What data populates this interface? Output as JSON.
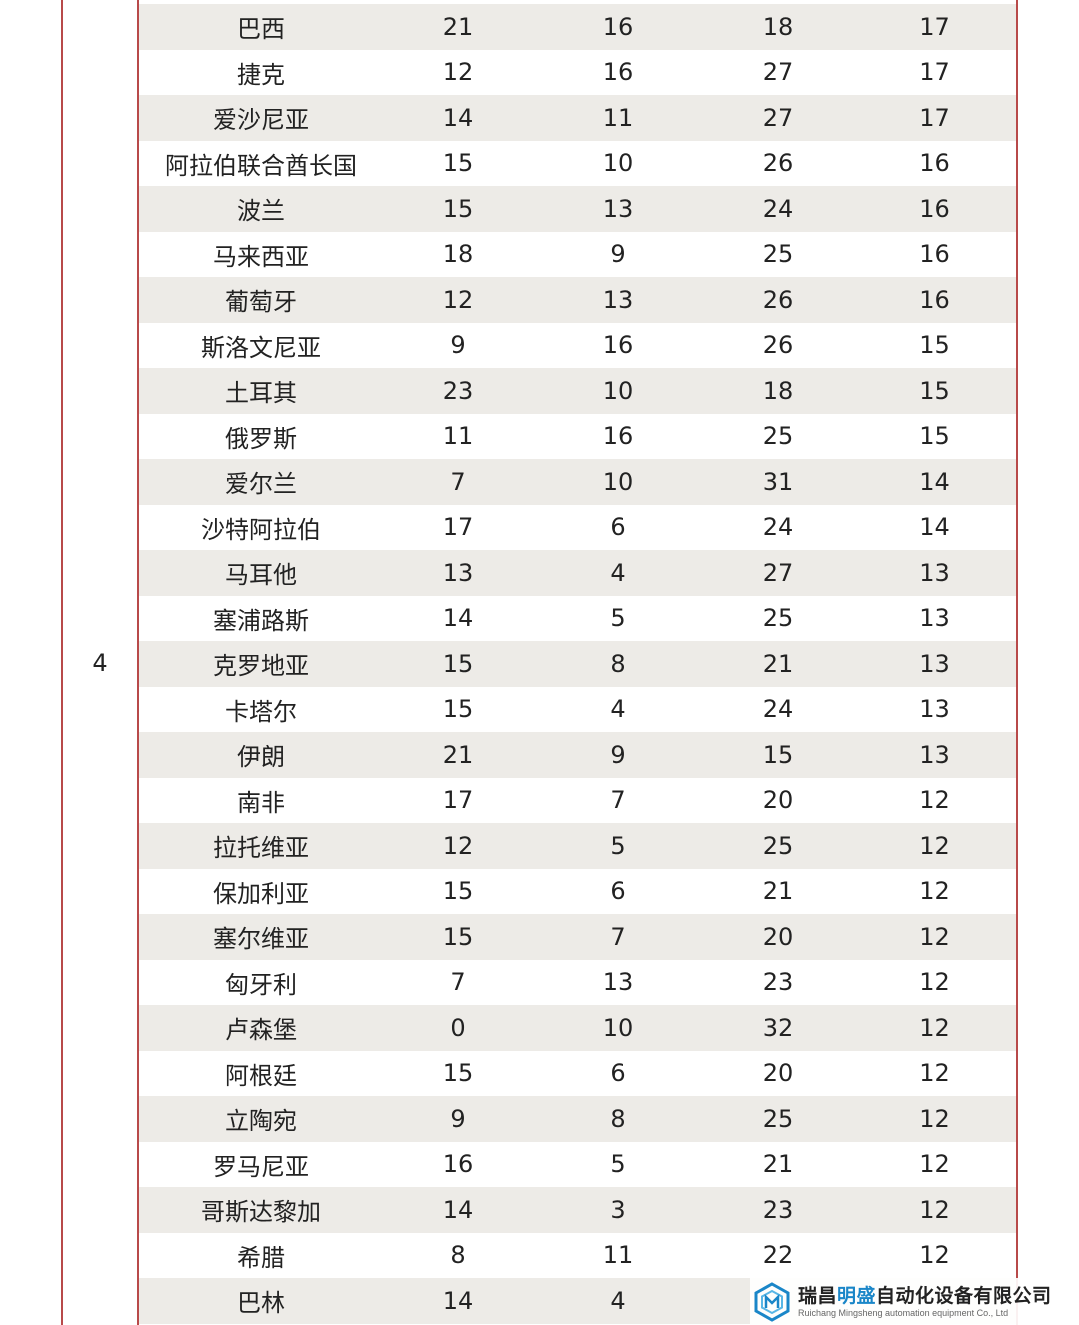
{
  "group": "4",
  "rows": [
    {
      "country": "巴西",
      "a": "21",
      "b": "16",
      "c": "18",
      "d": "17"
    },
    {
      "country": "捷克",
      "a": "12",
      "b": "16",
      "c": "27",
      "d": "17"
    },
    {
      "country": "爱沙尼亚",
      "a": "14",
      "b": "11",
      "c": "27",
      "d": "17"
    },
    {
      "country": "阿拉伯联合酋长国",
      "a": "15",
      "b": "10",
      "c": "26",
      "d": "16"
    },
    {
      "country": "波兰",
      "a": "15",
      "b": "13",
      "c": "24",
      "d": "16"
    },
    {
      "country": "马来西亚",
      "a": "18",
      "b": "9",
      "c": "25",
      "d": "16"
    },
    {
      "country": "葡萄牙",
      "a": "12",
      "b": "13",
      "c": "26",
      "d": "16"
    },
    {
      "country": "斯洛文尼亚",
      "a": "9",
      "b": "16",
      "c": "26",
      "d": "15"
    },
    {
      "country": "土耳其",
      "a": "23",
      "b": "10",
      "c": "18",
      "d": "15"
    },
    {
      "country": "俄罗斯",
      "a": "11",
      "b": "16",
      "c": "25",
      "d": "15"
    },
    {
      "country": "爱尔兰",
      "a": "7",
      "b": "10",
      "c": "31",
      "d": "14"
    },
    {
      "country": "沙特阿拉伯",
      "a": "17",
      "b": "6",
      "c": "24",
      "d": "14"
    },
    {
      "country": "马耳他",
      "a": "13",
      "b": "4",
      "c": "27",
      "d": "13"
    },
    {
      "country": "塞浦路斯",
      "a": "14",
      "b": "5",
      "c": "25",
      "d": "13"
    },
    {
      "country": "克罗地亚",
      "a": "15",
      "b": "8",
      "c": "21",
      "d": "13"
    },
    {
      "country": "卡塔尔",
      "a": "15",
      "b": "4",
      "c": "24",
      "d": "13"
    },
    {
      "country": "伊朗",
      "a": "21",
      "b": "9",
      "c": "15",
      "d": "13"
    },
    {
      "country": "南非",
      "a": "17",
      "b": "7",
      "c": "20",
      "d": "12"
    },
    {
      "country": "拉托维亚",
      "a": "12",
      "b": "5",
      "c": "25",
      "d": "12"
    },
    {
      "country": "保加利亚",
      "a": "15",
      "b": "6",
      "c": "21",
      "d": "12"
    },
    {
      "country": "塞尔维亚",
      "a": "15",
      "b": "7",
      "c": "20",
      "d": "12"
    },
    {
      "country": "匈牙利",
      "a": "7",
      "b": "13",
      "c": "23",
      "d": "12"
    },
    {
      "country": "卢森堡",
      "a": "0",
      "b": "10",
      "c": "32",
      "d": "12"
    },
    {
      "country": "阿根廷",
      "a": "15",
      "b": "6",
      "c": "20",
      "d": "12"
    },
    {
      "country": "立陶宛",
      "a": "9",
      "b": "8",
      "c": "25",
      "d": "12"
    },
    {
      "country": "罗马尼亚",
      "a": "16",
      "b": "5",
      "c": "21",
      "d": "12"
    },
    {
      "country": "哥斯达黎加",
      "a": "14",
      "b": "3",
      "c": "23",
      "d": "12"
    },
    {
      "country": "希腊",
      "a": "8",
      "b": "11",
      "c": "22",
      "d": "12"
    },
    {
      "country": "巴林",
      "a": "14",
      "b": "4",
      "c": "",
      "d": ""
    }
  ],
  "watermark": {
    "cn_prefix": "瑞昌",
    "cn_highlight": "明盛",
    "cn_suffix": "自动化设备有限公司",
    "en": "Ruichang Mingsheng automation equipment Co., Ltd",
    "logo_icon": "hexagon-logo-icon",
    "accent": "#1a86c8"
  }
}
